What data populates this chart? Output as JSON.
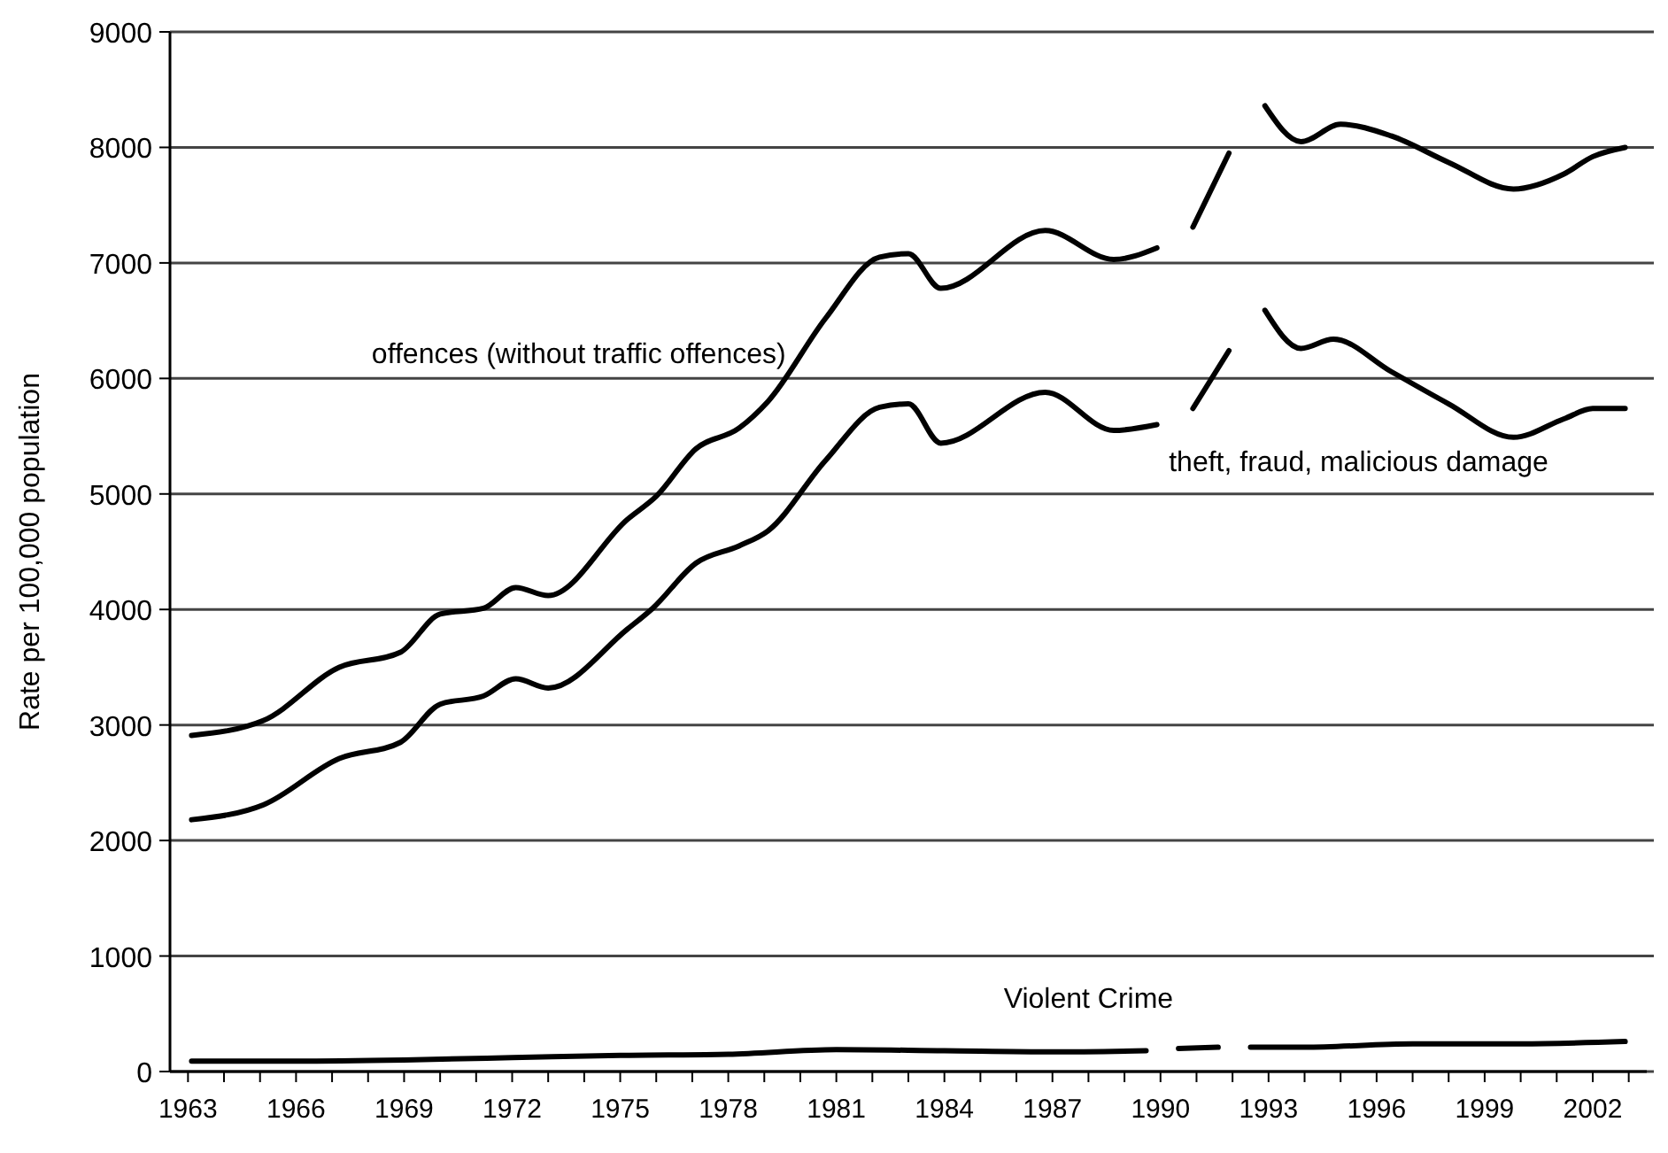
{
  "chart_data": {
    "type": "line",
    "ylabel": "Rate per 100,000 population",
    "xlim": [
      1962.5,
      2003.5
    ],
    "ylim": [
      0,
      9000
    ],
    "yticks": [
      0,
      1000,
      2000,
      3000,
      4000,
      5000,
      6000,
      7000,
      8000,
      9000
    ],
    "xticks": [
      1963,
      {
        "value": 1964,
        "label": null
      },
      {
        "value": 1965,
        "label": null
      },
      1966,
      {
        "value": 1967,
        "label": null
      },
      {
        "value": 1968,
        "label": null
      },
      1969,
      {
        "value": 1970,
        "label": null
      },
      {
        "value": 1971,
        "label": null
      },
      1972,
      {
        "value": 1973,
        "label": null
      },
      {
        "value": 1974,
        "label": null
      },
      1975,
      {
        "value": 1976,
        "label": null
      },
      {
        "value": 1977,
        "label": null
      },
      1978,
      {
        "value": 1979,
        "label": null
      },
      {
        "value": 1980,
        "label": null
      },
      1981,
      {
        "value": 1982,
        "label": null
      },
      {
        "value": 1983,
        "label": null
      },
      1984,
      {
        "value": 1985,
        "label": null
      },
      {
        "value": 1986,
        "label": null
      },
      1987,
      {
        "value": 1988,
        "label": null
      },
      {
        "value": 1989,
        "label": null
      },
      1990,
      {
        "value": 1991,
        "label": null
      },
      {
        "value": 1992,
        "label": null
      },
      1993,
      {
        "value": 1994,
        "label": null
      },
      {
        "value": 1995,
        "label": null
      },
      1996,
      {
        "value": 1997,
        "label": null
      },
      {
        "value": 1998,
        "label": null
      },
      1999,
      {
        "value": 2000,
        "label": null
      },
      {
        "value": 2001,
        "label": null
      },
      2002,
      {
        "value": 2003,
        "label": null
      }
    ],
    "grid": "y",
    "marker": "none",
    "line_style": "solid",
    "series": [
      {
        "name": "offences (without traffic offences)",
        "color": "#000000",
        "x": [
          1963.1,
          1965.1,
          1967.2,
          1968.9,
          1970.0,
          1971.2,
          1972.1,
          1973.0,
          1975.2,
          1976.0,
          1977.1,
          1978.3,
          1979.1,
          1980.7,
          1982.2,
          1983.0,
          1983.9,
          1986.8,
          1988.7,
          1989.9,
          1990.4,
          1990.9,
          1991.9,
          1992.4,
          1992.9,
          1993.9,
          1995.0,
          1996.4,
          1998.0,
          1999.8,
          2001.2,
          2002.0,
          2002.9
        ],
        "values": [
          2910,
          3040,
          3500,
          3630,
          3960,
          4010,
          4190,
          4120,
          4780,
          4980,
          5390,
          5570,
          5800,
          6520,
          7050,
          7080,
          6780,
          7280,
          7030,
          7130,
          null,
          7310,
          7950,
          null,
          8360,
          8050,
          8200,
          8100,
          7870,
          7640,
          7770,
          7920,
          8000
        ]
      },
      {
        "name": "theft, fraud, malicious damage",
        "color": "#000000",
        "x": [
          1963.1,
          1965.1,
          1967.2,
          1968.9,
          1970.0,
          1971.2,
          1972.1,
          1973.0,
          1975.2,
          1975.9,
          1977.1,
          1978.3,
          1979.1,
          1980.7,
          1982.2,
          1983.0,
          1983.9,
          1986.8,
          1988.7,
          1989.9,
          1990.4,
          1990.9,
          1991.9,
          1992.4,
          1992.9,
          1993.9,
          1994.8,
          1996.4,
          1998.0,
          1999.8,
          2001.2,
          2002.0,
          2002.9
        ],
        "values": [
          2180,
          2310,
          2710,
          2850,
          3180,
          3250,
          3400,
          3320,
          3830,
          4010,
          4400,
          4550,
          4680,
          5290,
          5750,
          5780,
          5440,
          5880,
          5550,
          5600,
          null,
          5740,
          6240,
          null,
          6590,
          6260,
          6340,
          6060,
          5780,
          5490,
          5650,
          5740,
          5740
        ]
      },
      {
        "name": "Violent Crime",
        "color": "#000000",
        "x": [
          1963.1,
          1966,
          1969,
          1972,
          1975,
          1978,
          1981,
          1984,
          1987,
          1989.6,
          1990.1,
          1990.5,
          1991.6,
          1992.1,
          1992.5,
          1994,
          1997,
          2000,
          2002.9
        ],
        "values": [
          90,
          90,
          100,
          120,
          140,
          150,
          190,
          180,
          170,
          180,
          null,
          200,
          210,
          null,
          210,
          210,
          240,
          240,
          260
        ]
      }
    ]
  }
}
